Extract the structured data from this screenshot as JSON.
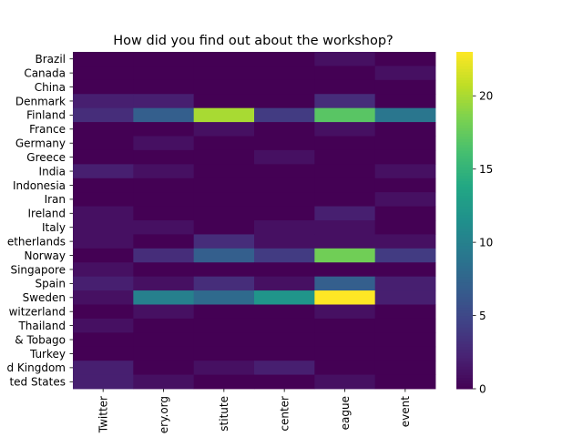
{
  "chart_data": {
    "type": "heatmap",
    "title": "How did you find out about the workshop?",
    "rows": [
      "Brazil",
      "Canada",
      "China",
      "Denmark",
      "Finland",
      "France",
      "Germany",
      "Greece",
      "India",
      "Indonesia",
      "Iran",
      "Ireland",
      "Italy",
      "Netherlands",
      "Norway",
      "Singapore",
      "Spain",
      "Sweden",
      "Switzerland",
      "Thailand",
      "Trinidad & Tobago",
      "Turkey",
      "United Kingdom",
      "United States"
    ],
    "columns": [
      "Twitter",
      "Gallery.org",
      "Institute",
      "Research center",
      "League",
      "Other event"
    ],
    "values": [
      [
        0,
        0,
        0,
        0,
        1,
        0
      ],
      [
        0,
        0,
        0,
        0,
        0,
        1
      ],
      [
        0,
        0,
        0,
        0,
        0,
        0
      ],
      [
        2,
        2,
        0,
        0,
        3,
        0
      ],
      [
        3,
        7,
        20,
        4,
        17,
        9
      ],
      [
        0,
        0,
        1,
        0,
        1,
        0
      ],
      [
        0,
        1,
        0,
        0,
        0,
        0
      ],
      [
        0,
        0,
        0,
        1,
        0,
        0
      ],
      [
        2,
        1,
        0,
        0,
        0,
        1
      ],
      [
        0,
        0,
        0,
        0,
        0,
        0
      ],
      [
        0,
        0,
        0,
        0,
        0,
        1
      ],
      [
        1,
        0,
        0,
        0,
        2,
        0
      ],
      [
        1,
        1,
        0,
        1,
        1,
        0
      ],
      [
        1,
        0,
        3,
        1,
        1,
        1
      ],
      [
        0,
        3,
        7,
        4,
        18,
        4
      ],
      [
        1,
        0,
        0,
        0,
        0,
        0
      ],
      [
        2,
        1,
        3,
        1,
        7,
        2
      ],
      [
        1,
        10,
        8,
        12,
        23,
        2
      ],
      [
        0,
        1,
        0,
        0,
        1,
        0
      ],
      [
        1,
        0,
        0,
        0,
        0,
        0
      ],
      [
        0,
        0,
        0,
        0,
        0,
        0
      ],
      [
        0,
        0,
        0,
        0,
        0,
        0
      ],
      [
        2,
        0,
        1,
        2,
        0,
        0
      ],
      [
        2,
        1,
        0,
        0,
        1,
        0
      ]
    ],
    "colorbar": {
      "min": 0,
      "max": 23,
      "ticks": [
        0,
        5,
        10,
        15,
        20
      ]
    }
  },
  "texts": {
    "row_labels_visible": [
      "Brazil",
      "Canada",
      "China",
      "Denmark",
      "Finland",
      "France",
      "Germany",
      "Greece",
      "India",
      "Indonesia",
      "Iran",
      "Ireland",
      "Italy",
      "etherlands",
      "Norway",
      "Singapore",
      "Spain",
      "Sweden",
      "witzerland",
      "Thailand",
      "& Tobago",
      "Turkey",
      "d Kingdom",
      "ted States"
    ],
    "column_labels_visible": [
      "Twitter",
      "ery.org",
      "stitute",
      "center",
      "eague",
      "event"
    ]
  }
}
